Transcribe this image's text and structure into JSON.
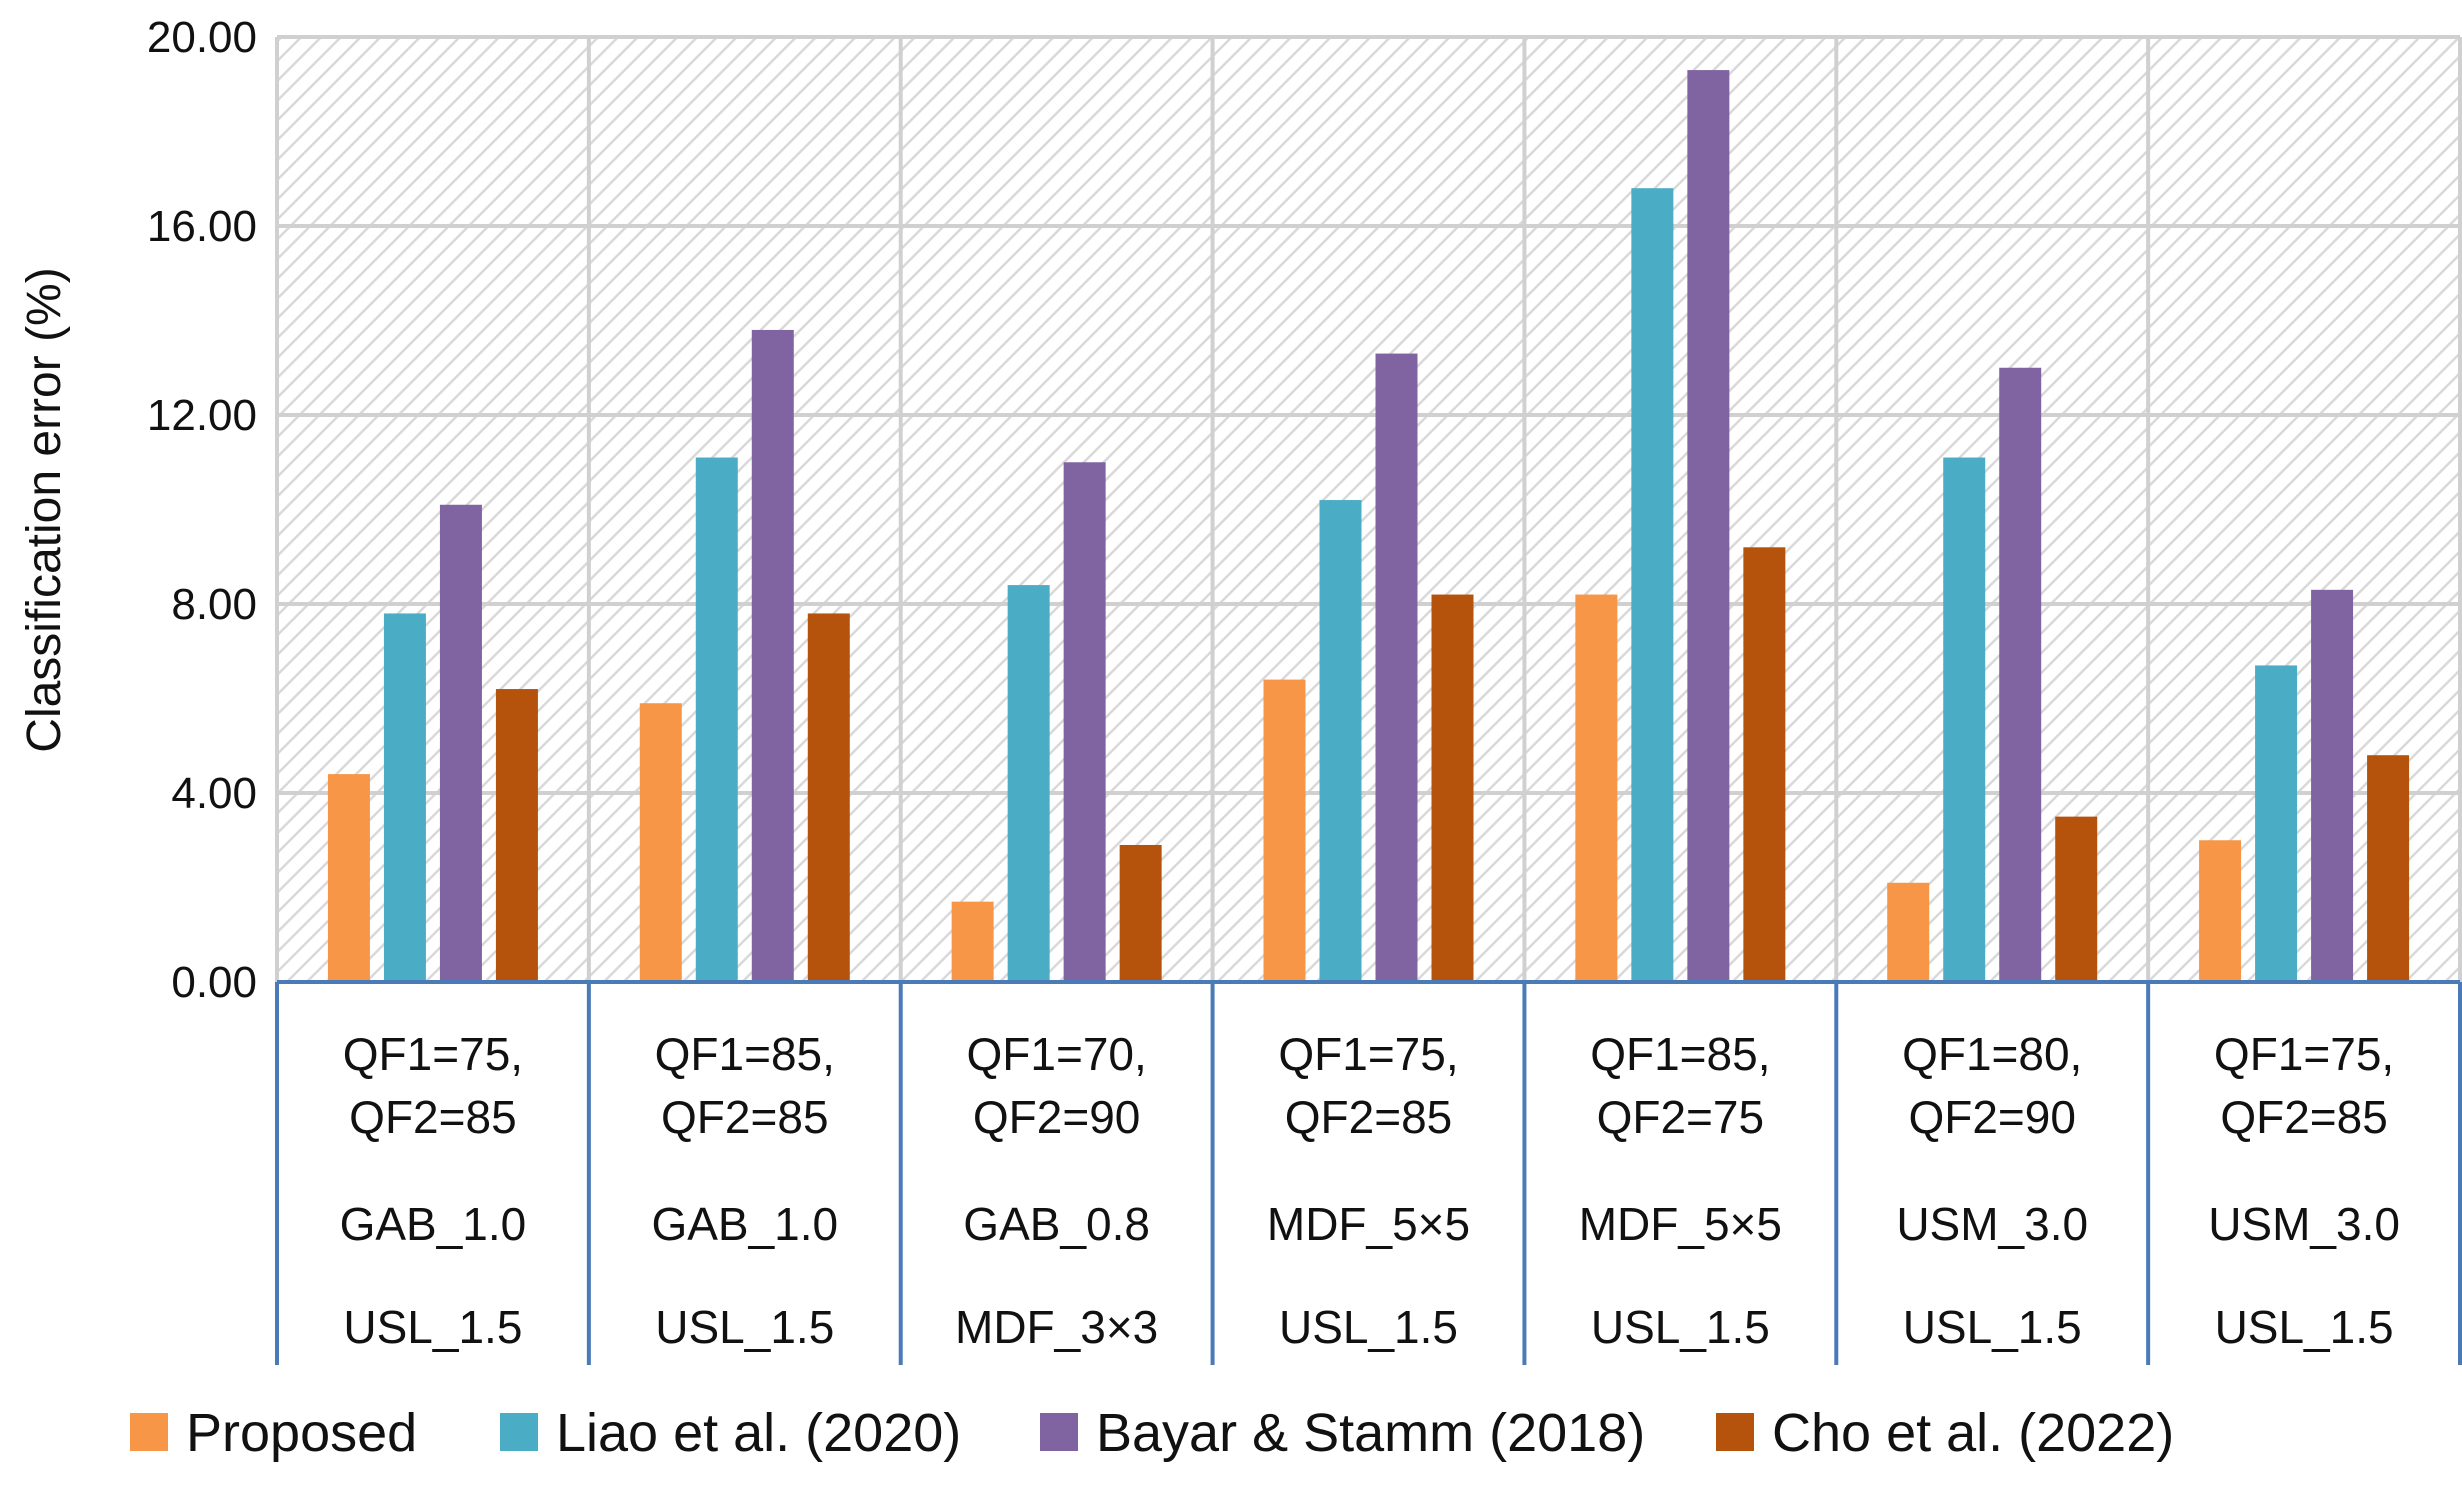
{
  "chart_data": {
    "type": "bar",
    "title": "",
    "xlabel": "",
    "ylabel": "Classification error (%)",
    "ylim": [
      0,
      20
    ],
    "yticks": [
      "0.00",
      "4.00",
      "8.00",
      "12.00",
      "16.00",
      "20.00"
    ],
    "grid": true,
    "legend_position": "bottom",
    "categories": [
      {
        "lines": [
          "QF1=75,",
          "QF2=85"
        ],
        "row2": "GAB_1.0",
        "row3": "USL_1.5"
      },
      {
        "lines": [
          "QF1=85,",
          "QF2=85"
        ],
        "row2": "GAB_1.0",
        "row3": "USL_1.5"
      },
      {
        "lines": [
          "QF1=70,",
          "QF2=90"
        ],
        "row2": "GAB_0.8",
        "row3": "MDF_3×3"
      },
      {
        "lines": [
          "QF1=75,",
          "QF2=85"
        ],
        "row2": "MDF_5×5",
        "row3": "USL_1.5"
      },
      {
        "lines": [
          "QF1=85,",
          "QF2=75"
        ],
        "row2": "MDF_5×5",
        "row3": "USL_1.5"
      },
      {
        "lines": [
          "QF1=80,",
          "QF2=90"
        ],
        "row2": "USM_3.0",
        "row3": "USL_1.5"
      },
      {
        "lines": [
          "QF1=75,",
          "QF2=85"
        ],
        "row2": "USM_3.0",
        "row3": "USL_1.5"
      }
    ],
    "series": [
      {
        "name": "Proposed",
        "color": "#F79646",
        "values": [
          4.4,
          5.9,
          1.7,
          6.4,
          8.2,
          2.1,
          3.0
        ]
      },
      {
        "name": "Liao et al. (2020)",
        "color": "#4BACC6",
        "values": [
          7.8,
          11.1,
          8.4,
          10.2,
          16.8,
          11.1,
          6.7
        ]
      },
      {
        "name": "Bayar & Stamm (2018)",
        "color": "#8064A2",
        "values": [
          10.1,
          13.8,
          11.0,
          13.3,
          19.3,
          13.0,
          8.3
        ]
      },
      {
        "name": "Cho et al. (2022)",
        "color": "#B5530D",
        "values": [
          6.2,
          7.8,
          2.9,
          8.2,
          9.2,
          3.5,
          4.8
        ]
      }
    ]
  }
}
